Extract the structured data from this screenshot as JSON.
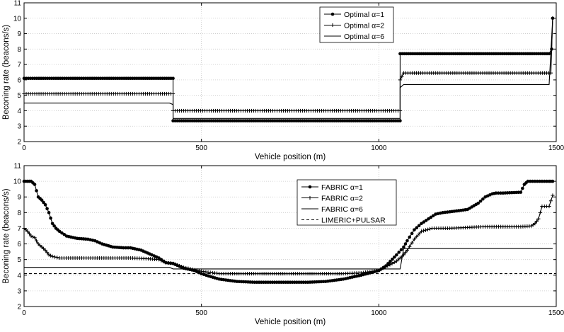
{
  "chart_data": [
    {
      "type": "line",
      "title": "",
      "xlabel": "Vehicle position (m)",
      "ylabel": "Beconing rate (beacons/s)",
      "xlim": [
        0,
        1500
      ],
      "ylim": [
        2,
        11
      ],
      "xticks": [
        0,
        500,
        1000,
        1500
      ],
      "yticks": [
        2,
        3,
        4,
        5,
        6,
        7,
        8,
        9,
        10,
        11
      ],
      "grid": true,
      "legend_position": "top-right",
      "series": [
        {
          "name": "Optimal α=1",
          "style": "solid-dot",
          "x": [
            0,
            420,
            420,
            1060,
            1060,
            1480,
            1487,
            1490
          ],
          "y": [
            6.1,
            6.1,
            3.35,
            3.35,
            7.7,
            7.7,
            8.0,
            10.0
          ]
        },
        {
          "name": "Optimal α=2",
          "style": "solid-plus",
          "x": [
            0,
            420,
            420,
            1060,
            1060,
            1070,
            1485,
            1490
          ],
          "y": [
            5.1,
            5.1,
            4.0,
            4.0,
            6.0,
            6.45,
            6.45,
            10.0
          ]
        },
        {
          "name": "Optimal α=6",
          "style": "solid",
          "x": [
            0,
            410,
            420,
            420,
            1060,
            1060,
            1070,
            1480,
            1490
          ],
          "y": [
            4.5,
            4.5,
            4.4,
            3.5,
            3.5,
            5.5,
            5.7,
            5.7,
            10.0
          ]
        }
      ]
    },
    {
      "type": "line",
      "title": "",
      "xlabel": "Vehicle position (m)",
      "ylabel": "Beconing rate (beacons/s)",
      "xlim": [
        0,
        1500
      ],
      "ylim": [
        2,
        11
      ],
      "xticks": [
        0,
        500,
        1000,
        1500
      ],
      "yticks": [
        2,
        3,
        4,
        5,
        6,
        7,
        8,
        9,
        10,
        11
      ],
      "grid": true,
      "legend_position": "top-right",
      "series": [
        {
          "name": "FABRIC α=1",
          "style": "solid-dot",
          "x": [
            0,
            10,
            20,
            30,
            40,
            50,
            60,
            70,
            80,
            90,
            100,
            120,
            150,
            180,
            200,
            220,
            250,
            280,
            300,
            330,
            360,
            380,
            400,
            420,
            450,
            480,
            500,
            520,
            550,
            600,
            650,
            700,
            750,
            800,
            850,
            900,
            950,
            1000,
            1020,
            1050,
            1070,
            1080,
            1100,
            1120,
            1140,
            1160,
            1180,
            1200,
            1250,
            1280,
            1300,
            1320,
            1330,
            1350,
            1400,
            1410,
            1420,
            1440,
            1460,
            1480,
            1490
          ],
          "y": [
            10.0,
            10.0,
            10.0,
            9.8,
            9.0,
            8.8,
            8.5,
            8.0,
            7.3,
            7.0,
            6.8,
            6.5,
            6.35,
            6.3,
            6.2,
            6.0,
            5.8,
            5.75,
            5.75,
            5.6,
            5.3,
            5.1,
            4.8,
            4.75,
            4.45,
            4.3,
            4.1,
            3.95,
            3.75,
            3.6,
            3.55,
            3.55,
            3.55,
            3.55,
            3.6,
            3.75,
            4.0,
            4.3,
            4.6,
            5.3,
            5.8,
            6.2,
            6.9,
            7.3,
            7.6,
            7.9,
            8.0,
            8.05,
            8.2,
            8.6,
            9.0,
            9.2,
            9.25,
            9.25,
            9.3,
            9.8,
            10.0,
            10.0,
            10.0,
            10.0,
            10.0
          ]
        },
        {
          "name": "FABRIC α=2",
          "style": "solid-plus",
          "x": [
            0,
            10,
            20,
            30,
            40,
            50,
            60,
            70,
            80,
            100,
            150,
            200,
            250,
            300,
            350,
            380,
            400,
            420,
            450,
            500,
            550,
            600,
            700,
            800,
            900,
            950,
            1000,
            1050,
            1070,
            1080,
            1100,
            1120,
            1150,
            1200,
            1250,
            1300,
            1350,
            1400,
            1430,
            1440,
            1450,
            1460,
            1480,
            1490
          ],
          "y": [
            7.0,
            6.8,
            6.5,
            6.4,
            6.0,
            5.8,
            5.6,
            5.3,
            5.2,
            5.1,
            5.1,
            5.1,
            5.1,
            5.1,
            5.05,
            5.0,
            4.8,
            4.75,
            4.5,
            4.25,
            4.1,
            4.1,
            4.1,
            4.1,
            4.1,
            4.15,
            4.3,
            4.9,
            5.3,
            5.6,
            6.3,
            6.8,
            7.0,
            7.0,
            7.05,
            7.1,
            7.1,
            7.1,
            7.15,
            7.3,
            7.6,
            8.4,
            8.4,
            9.1
          ]
        },
        {
          "name": "FABRIC α=6",
          "style": "solid",
          "x": [
            0,
            410,
            420,
            1060,
            1070,
            1490
          ],
          "y": [
            4.5,
            4.5,
            4.4,
            4.4,
            5.7,
            5.7
          ]
        },
        {
          "name": "LIMERIC+PULSAR",
          "style": "dashed",
          "x": [
            0,
            1500
          ],
          "y": [
            4.1,
            4.1
          ]
        }
      ]
    }
  ]
}
